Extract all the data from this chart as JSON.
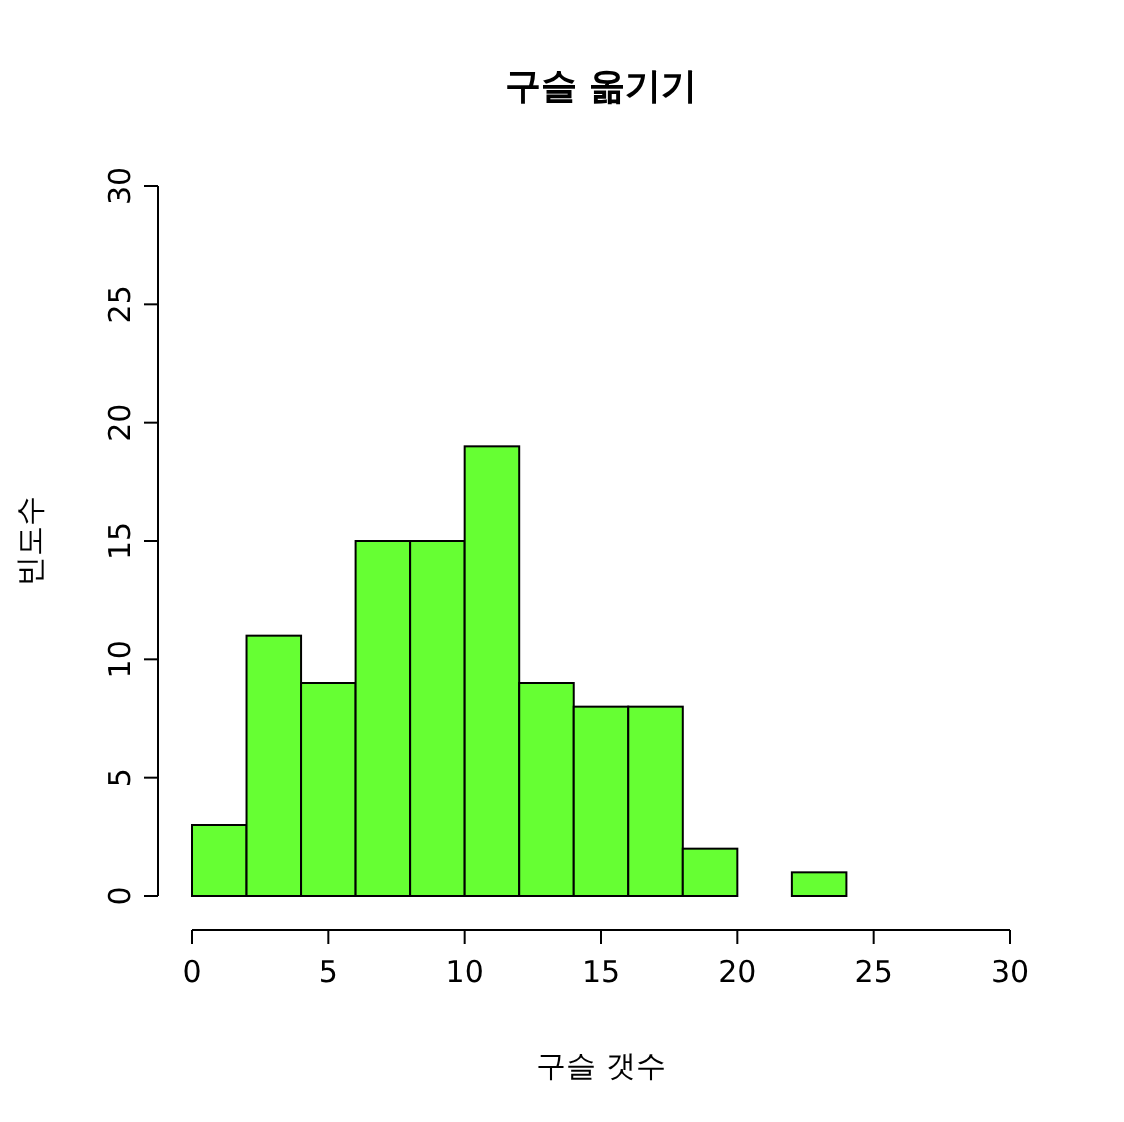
{
  "chart_data": {
    "type": "histogram",
    "title": "구슬 옮기기",
    "xlabel": "구슬 갯수",
    "ylabel": "빈도수",
    "bins": [
      0,
      2,
      4,
      6,
      8,
      10,
      12,
      14,
      16,
      18,
      20,
      22,
      24,
      26,
      28,
      30
    ],
    "values": [
      3,
      11,
      9,
      15,
      15,
      19,
      9,
      8,
      8,
      2,
      0,
      1,
      0,
      0,
      0
    ],
    "color": "#66ff33",
    "xlim": [
      0,
      30
    ],
    "ylim": [
      0,
      30
    ],
    "xticks": [
      0,
      5,
      10,
      15,
      20,
      25,
      30
    ],
    "yticks": [
      0,
      5,
      10,
      15,
      20,
      25,
      30
    ],
    "grid": false
  }
}
